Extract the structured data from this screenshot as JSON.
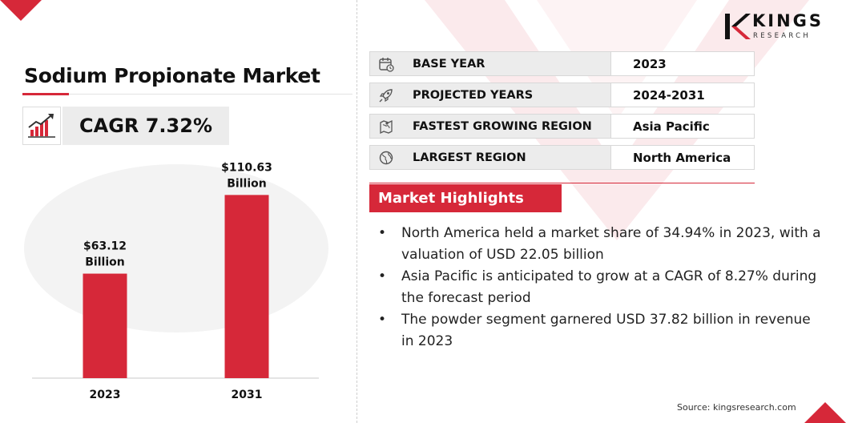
{
  "header": {
    "title": "Sodium Propionate Market",
    "cagr": "CAGR 7.32%"
  },
  "logo": {
    "name": "KINGS",
    "sub": "RESEARCH"
  },
  "icons": {
    "cagr": "growth-chart-icon",
    "base_year": "calendar-icon",
    "projected": "rocket-icon",
    "fastest": "region-map-icon",
    "largest": "globe-icon"
  },
  "info": {
    "rows": [
      {
        "label": "BASE YEAR",
        "value": "2023"
      },
      {
        "label": "PROJECTED YEARS",
        "value": "2024-2031"
      },
      {
        "label": "FASTEST GROWING REGION",
        "value": "Asia Pacific"
      },
      {
        "label": "LARGEST REGION",
        "value": "North America"
      }
    ]
  },
  "highlights": {
    "heading": "Market Highlights",
    "items": [
      "North America held a market share of 34.94% in 2023, with a valuation of USD 22.05 billion",
      "Asia Pacific is anticipated to grow at a CAGR of 8.27% during the forecast period",
      "The powder segment garnered USD 37.82 billion in revenue in 2023"
    ]
  },
  "source": "Source: kingsresearch.com",
  "colors": {
    "accent": "#d62839",
    "panel": "#ececec"
  },
  "chart_data": {
    "type": "bar",
    "categories": [
      "2023",
      "2031"
    ],
    "values": [
      63.12,
      110.63
    ],
    "data_labels": [
      [
        "$63.12",
        "Billion"
      ],
      [
        "$110.63",
        "Billion"
      ]
    ],
    "ylim": [
      0,
      120
    ],
    "grid": false
  }
}
